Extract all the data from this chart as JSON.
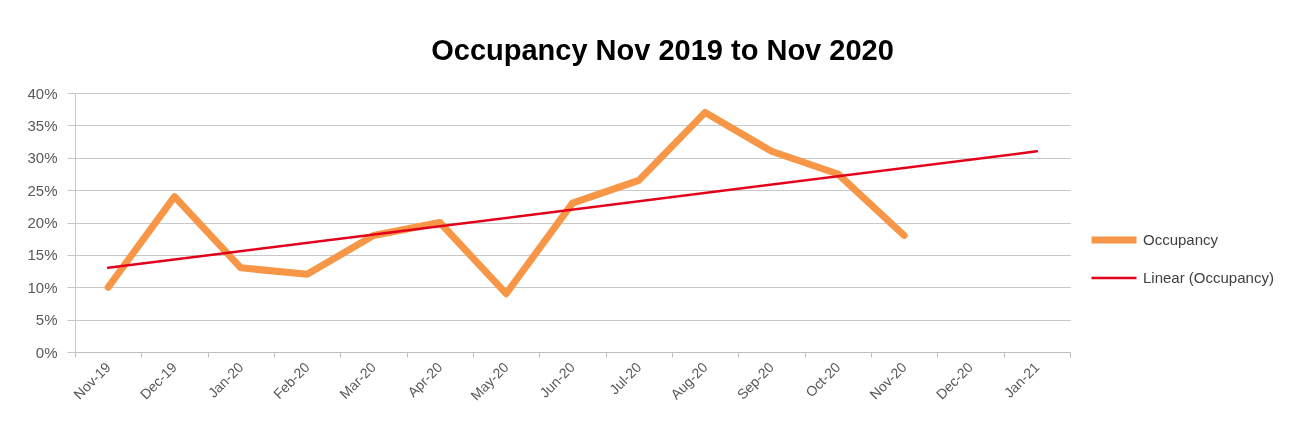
{
  "chart_data": {
    "type": "line",
    "title": "Occupancy Nov 2019 to Nov 2020",
    "categories": [
      "Nov-19",
      "Dec-19",
      "Jan-20",
      "Feb-20",
      "Mar-20",
      "Apr-20",
      "May-20",
      "Jun-20",
      "Jul-20",
      "Aug-20",
      "Sep-20",
      "Oct-20",
      "Nov-20",
      "Dec-20",
      "Jan-21"
    ],
    "series": [
      {
        "name": "Occupancy",
        "color": "#f79646",
        "values": [
          10,
          24,
          13,
          12,
          18,
          20,
          9,
          23,
          26.5,
          37,
          31,
          27.5,
          18,
          null,
          null
        ]
      },
      {
        "name": "Linear (Occupancy)",
        "type": "line",
        "color": "#e3001b",
        "x": [
          "Nov-19",
          "Jan-21"
        ],
        "values": [
          13,
          31
        ]
      }
    ],
    "ylim": [
      0,
      40
    ],
    "yticks": [
      {
        "value": 0,
        "label": "0%"
      },
      {
        "value": 5,
        "label": "5%"
      },
      {
        "value": 10,
        "label": "10%"
      },
      {
        "value": 15,
        "label": "15%"
      },
      {
        "value": 20,
        "label": "20%"
      },
      {
        "value": 25,
        "label": "25%"
      },
      {
        "value": 30,
        "label": "30%"
      },
      {
        "value": 35,
        "label": "35%"
      },
      {
        "value": 40,
        "label": "40%"
      }
    ],
    "grid": "y",
    "legend": "right",
    "line_style": "solid"
  }
}
